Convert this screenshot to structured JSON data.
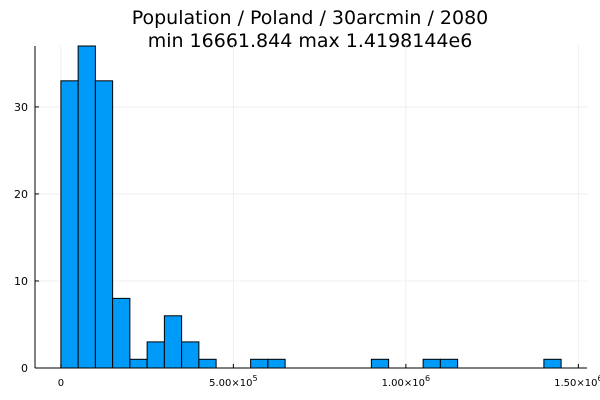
{
  "chart_data": {
    "type": "bar",
    "title_lines": [
      "Population / Poland / 30arcmin / 2080",
      "min 16661.844  max 1.4198144e6"
    ],
    "xlabel": "",
    "ylabel": "",
    "bin_width": 50000,
    "bin_starts": [
      0,
      50000,
      100000,
      150000,
      200000,
      250000,
      300000,
      350000,
      400000,
      450000,
      500000,
      550000,
      600000,
      650000,
      700000,
      750000,
      800000,
      850000,
      900000,
      950000,
      1000000,
      1050000,
      1100000,
      1150000,
      1200000,
      1250000,
      1300000,
      1350000,
      1400000
    ],
    "values": [
      33,
      37,
      33,
      8,
      1,
      3,
      6,
      3,
      1,
      0,
      0,
      1,
      1,
      0,
      0,
      0,
      0,
      0,
      1,
      0,
      0,
      1,
      1,
      0,
      0,
      0,
      0,
      0,
      1
    ],
    "xlim": [
      -75000,
      1525000
    ],
    "ylim": [
      0,
      37
    ],
    "x_ticks": [
      {
        "value": 0,
        "mant": "0",
        "exp": ""
      },
      {
        "value": 500000,
        "mant": "5.00×10",
        "exp": "5"
      },
      {
        "value": 1000000,
        "mant": "1.00×10",
        "exp": "6"
      },
      {
        "value": 1500000,
        "mant": "1.50×10",
        "exp": "6"
      }
    ],
    "y_ticks": [
      0,
      10,
      20,
      30
    ],
    "grid": true,
    "legend": "none",
    "bar_color": "#009af9",
    "bar_edge_color": "#000000",
    "grid_color": "#ebebeb"
  }
}
